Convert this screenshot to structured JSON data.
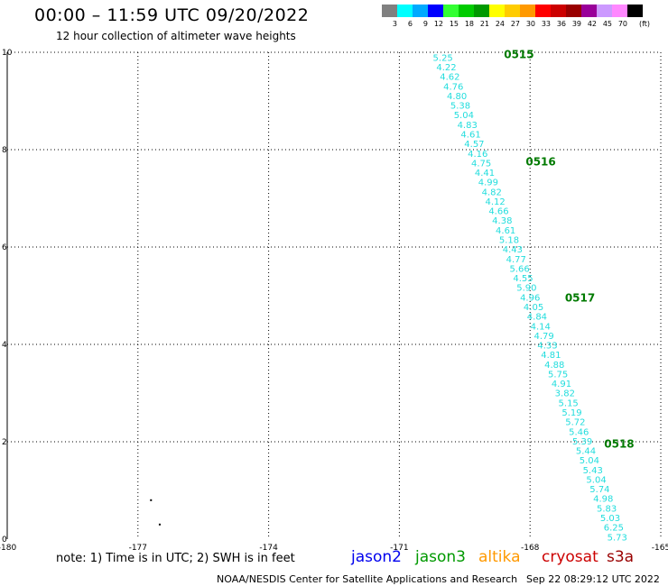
{
  "header": {
    "title": "00:00 – 11:59 UTC 09/20/2022",
    "subtitle": "12 hour collection of altimeter wave heights"
  },
  "legend": {
    "unit": "(ft)",
    "bins": [
      {
        "label": "3",
        "color": "#808080"
      },
      {
        "label": "6",
        "color": "#00ffff"
      },
      {
        "label": "9",
        "color": "#00aaff"
      },
      {
        "label": "12",
        "color": "#0000ff"
      },
      {
        "label": "15",
        "color": "#33ff33"
      },
      {
        "label": "18",
        "color": "#00cc00"
      },
      {
        "label": "21",
        "color": "#009900"
      },
      {
        "label": "24",
        "color": "#ffff00"
      },
      {
        "label": "27",
        "color": "#ffcc00"
      },
      {
        "label": "30",
        "color": "#ff9900"
      },
      {
        "label": "33",
        "color": "#ff0000"
      },
      {
        "label": "36",
        "color": "#cc0000"
      },
      {
        "label": "39",
        "color": "#990000"
      },
      {
        "label": "42",
        "color": "#990099"
      },
      {
        "label": "45",
        "color": "#cc99ff"
      },
      {
        "label": "70",
        "color": "#ff88ff"
      },
      {
        "label": "",
        "color": "#000000"
      }
    ]
  },
  "map": {
    "lon_range": [
      -180,
      -165
    ],
    "lat_range": [
      0,
      10
    ],
    "x_ticks": [
      "-180",
      "-177",
      "-174",
      "-171",
      "-168",
      "-165"
    ],
    "y_ticks": [
      "0",
      "2",
      "4",
      "6",
      "8",
      "10"
    ],
    "track_color": "#22dddd",
    "time_color": "#007a00",
    "track": {
      "values": [
        "5.25",
        "4.22",
        "4.62",
        "4.76",
        "4.80",
        "5.38",
        "5.04",
        "4.83",
        "4.61",
        "4.57",
        "4.16",
        "4.75",
        "4.41",
        "4.99",
        "4.82",
        "4.12",
        "4.66",
        "4.38",
        "4.61",
        "5.18",
        "4.43",
        "4.77",
        "5.66",
        "4.55",
        "5.90",
        "4.96",
        "4.05",
        "4.84",
        "4.14",
        "4.79",
        "4.33",
        "4.81",
        "4.88",
        "5.75",
        "4.91",
        "3.82",
        "5.15",
        "5.19",
        "5.72",
        "5.46",
        "5.39",
        "5.44",
        "5.04",
        "5.43",
        "5.04",
        "5.74",
        "4.98",
        "5.83",
        "5.03",
        "6.25",
        "5.73"
      ],
      "start": {
        "lon": -170.0,
        "lat": 9.9
      },
      "end": {
        "lon": -166.0,
        "lat": 0.05
      }
    },
    "time_labels": [
      {
        "text": "0515",
        "lon": -168.6,
        "lat": 9.95
      },
      {
        "text": "0516",
        "lon": -168.1,
        "lat": 7.75
      },
      {
        "text": "0517",
        "lon": -167.2,
        "lat": 4.95
      },
      {
        "text": "0518",
        "lon": -166.3,
        "lat": 1.95
      }
    ],
    "dots": [
      {
        "lon": -176.7,
        "lat": 0.8
      },
      {
        "lon": -176.5,
        "lat": 0.3
      }
    ]
  },
  "note": "note: 1) Time is in UTC; 2) SWH is in feet",
  "satellites": [
    {
      "name": "jason2",
      "color": "#0000ee",
      "left": 389
    },
    {
      "name": "jason3",
      "color": "#009900",
      "left": 460
    },
    {
      "name": "altika",
      "color": "#ff9900",
      "left": 530
    },
    {
      "name": "cryosat",
      "color": "#cc0000",
      "left": 600
    },
    {
      "name": "s3a",
      "color": "#990000",
      "left": 672
    }
  ],
  "footer": {
    "credit": "NOAA/NESDIS Center for Satellite Applications and Research",
    "timestamp": "Sep 22 08:29:12 UTC 2022"
  }
}
